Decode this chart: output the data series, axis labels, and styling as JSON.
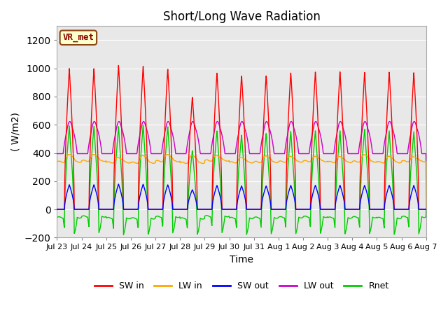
{
  "title": "Short/Long Wave Radiation",
  "xlabel": "Time",
  "ylabel": "( W/m2)",
  "ylim": [
    -200,
    1300
  ],
  "yticks": [
    -200,
    0,
    200,
    400,
    600,
    800,
    1000,
    1200
  ],
  "colors": {
    "SW_in": "#ff0000",
    "LW_in": "#ffa500",
    "SW_out": "#0000ff",
    "LW_out": "#cc00cc",
    "Rnet": "#00cc00"
  },
  "legend_labels": [
    "SW in",
    "LW in",
    "SW out",
    "LW out",
    "Rnet"
  ],
  "annotation_text": "VR_met",
  "fig_bg_color": "#ffffff",
  "plot_bg_color": "#e8e8e8",
  "grid_color": "#ffffff",
  "n_days": 15,
  "sw_in_peaks": [
    1000,
    1000,
    1025,
    1020,
    1000,
    800,
    975,
    955,
    955,
    975,
    980,
    980,
    975,
    975,
    970
  ],
  "xtick_labels": [
    "Jul 23",
    "Jul 24",
    "Jul 25",
    "Jul 26",
    "Jul 27",
    "Jul 28",
    "Jul 29",
    "Jul 30",
    "Jul 31",
    "Aug 1",
    "Aug 2",
    "Aug 3",
    "Aug 4",
    "Aug 5",
    "Aug 6",
    "Aug 7"
  ]
}
